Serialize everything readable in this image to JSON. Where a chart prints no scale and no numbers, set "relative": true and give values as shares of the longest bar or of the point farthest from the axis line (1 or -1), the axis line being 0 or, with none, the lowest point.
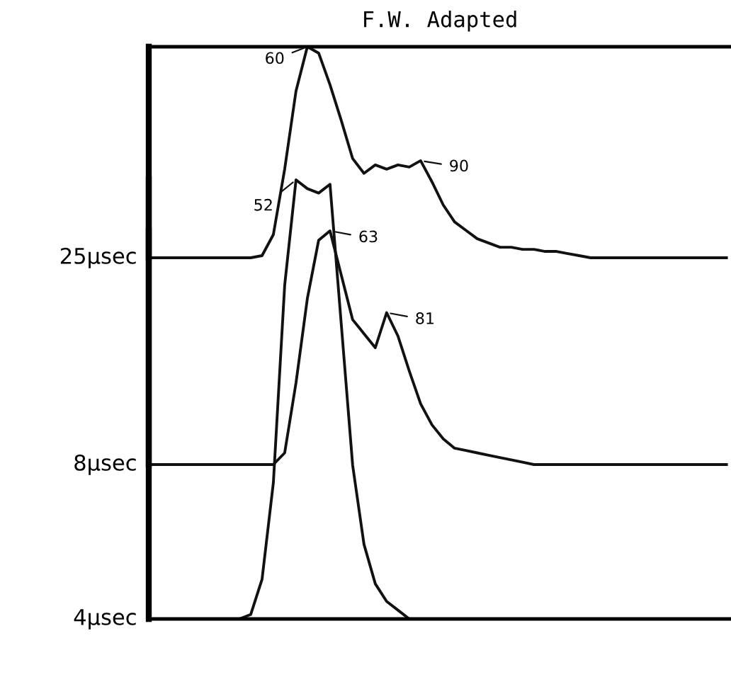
{
  "chart_data": [
    {
      "type": "line",
      "title": "F.W. Adapted",
      "ylabel": "25μsec",
      "relative": true,
      "categories": [
        null,
        null,
        null,
        null,
        null,
        null,
        null,
        null,
        null,
        null,
        null,
        null,
        null,
        null,
        null,
        null,
        null,
        null,
        null,
        null,
        null,
        null,
        null,
        null,
        null,
        null,
        null,
        null,
        null,
        null,
        null,
        null,
        null,
        null,
        null,
        null,
        null,
        null,
        null,
        null,
        null,
        null,
        null,
        null,
        null,
        null,
        null,
        null,
        null,
        null,
        null,
        null
      ],
      "series": [
        {
          "color": "#111111",
          "values": [
            0,
            0,
            0,
            0,
            0,
            0,
            0,
            0,
            0,
            0,
            0.01,
            0.11,
            0.42,
            0.79,
            1.0,
            0.97,
            0.82,
            0.65,
            0.47,
            0.4,
            0.44,
            0.42,
            0.44,
            0.43,
            0.46,
            0.36,
            0.25,
            0.17,
            0.13,
            0.09,
            0.07,
            0.05,
            0.05,
            0.04,
            0.04,
            0.03,
            0.03,
            0.02,
            0.01,
            0,
            0,
            0,
            0,
            0,
            0,
            0,
            0,
            0,
            0,
            0,
            0,
            0
          ]
        }
      ],
      "annotations": [
        "60",
        "90"
      ]
    },
    {
      "type": "line",
      "ylabel": "8μsec",
      "relative": true,
      "categories": [
        null,
        null,
        null,
        null,
        null,
        null,
        null,
        null,
        null,
        null,
        null,
        null,
        null,
        null,
        null,
        null,
        null,
        null,
        null,
        null,
        null,
        null,
        null,
        null,
        null,
        null,
        null,
        null,
        null,
        null,
        null,
        null,
        null,
        null,
        null,
        null,
        null,
        null,
        null,
        null,
        null,
        null,
        null,
        null,
        null,
        null,
        null,
        null,
        null,
        null,
        null,
        null
      ],
      "series": [
        {
          "color": "#111111",
          "values": [
            0,
            0,
            0,
            0,
            0,
            0,
            0,
            0,
            0,
            0,
            0,
            0,
            0.05,
            0.35,
            0.71,
            0.96,
            1.0,
            0.81,
            0.62,
            0.56,
            0.5,
            0.65,
            0.55,
            0.4,
            0.26,
            0.17,
            0.11,
            0.07,
            0.06,
            0.05,
            0.04,
            0.03,
            0.02,
            0.01,
            0,
            0,
            0,
            0,
            0,
            0,
            0,
            0,
            0,
            0,
            0,
            0,
            0,
            0,
            0,
            0,
            0,
            0
          ]
        }
      ],
      "annotations": [
        "63",
        "81"
      ]
    },
    {
      "type": "line",
      "ylabel": "4μsec",
      "relative": true,
      "categories": [
        null,
        null,
        null,
        null,
        null,
        null,
        null,
        null,
        null,
        null,
        null,
        null,
        null,
        null,
        null,
        null,
        null,
        null,
        null,
        null,
        null,
        null,
        null,
        null,
        null,
        null,
        null,
        null,
        null,
        null,
        null,
        null,
        null,
        null,
        null,
        null,
        null,
        null,
        null,
        null,
        null,
        null,
        null,
        null,
        null,
        null,
        null,
        null,
        null,
        null,
        null,
        null
      ],
      "series": [
        {
          "color": "#111111",
          "values": [
            0,
            0,
            0,
            0,
            0,
            0,
            0,
            0,
            0,
            0.01,
            0.09,
            0.31,
            0.76,
            1.0,
            0.98,
            0.97,
            0.99,
            0.67,
            0.35,
            0.17,
            0.08,
            0.04,
            0.02,
            0,
            0,
            0,
            0,
            0,
            0,
            0,
            0,
            0,
            0,
            0,
            0,
            0,
            0,
            0,
            0,
            0,
            0,
            0,
            0,
            0,
            0,
            0,
            0,
            0,
            0,
            0,
            0,
            0
          ]
        }
      ],
      "annotations": [
        "52"
      ]
    }
  ]
}
